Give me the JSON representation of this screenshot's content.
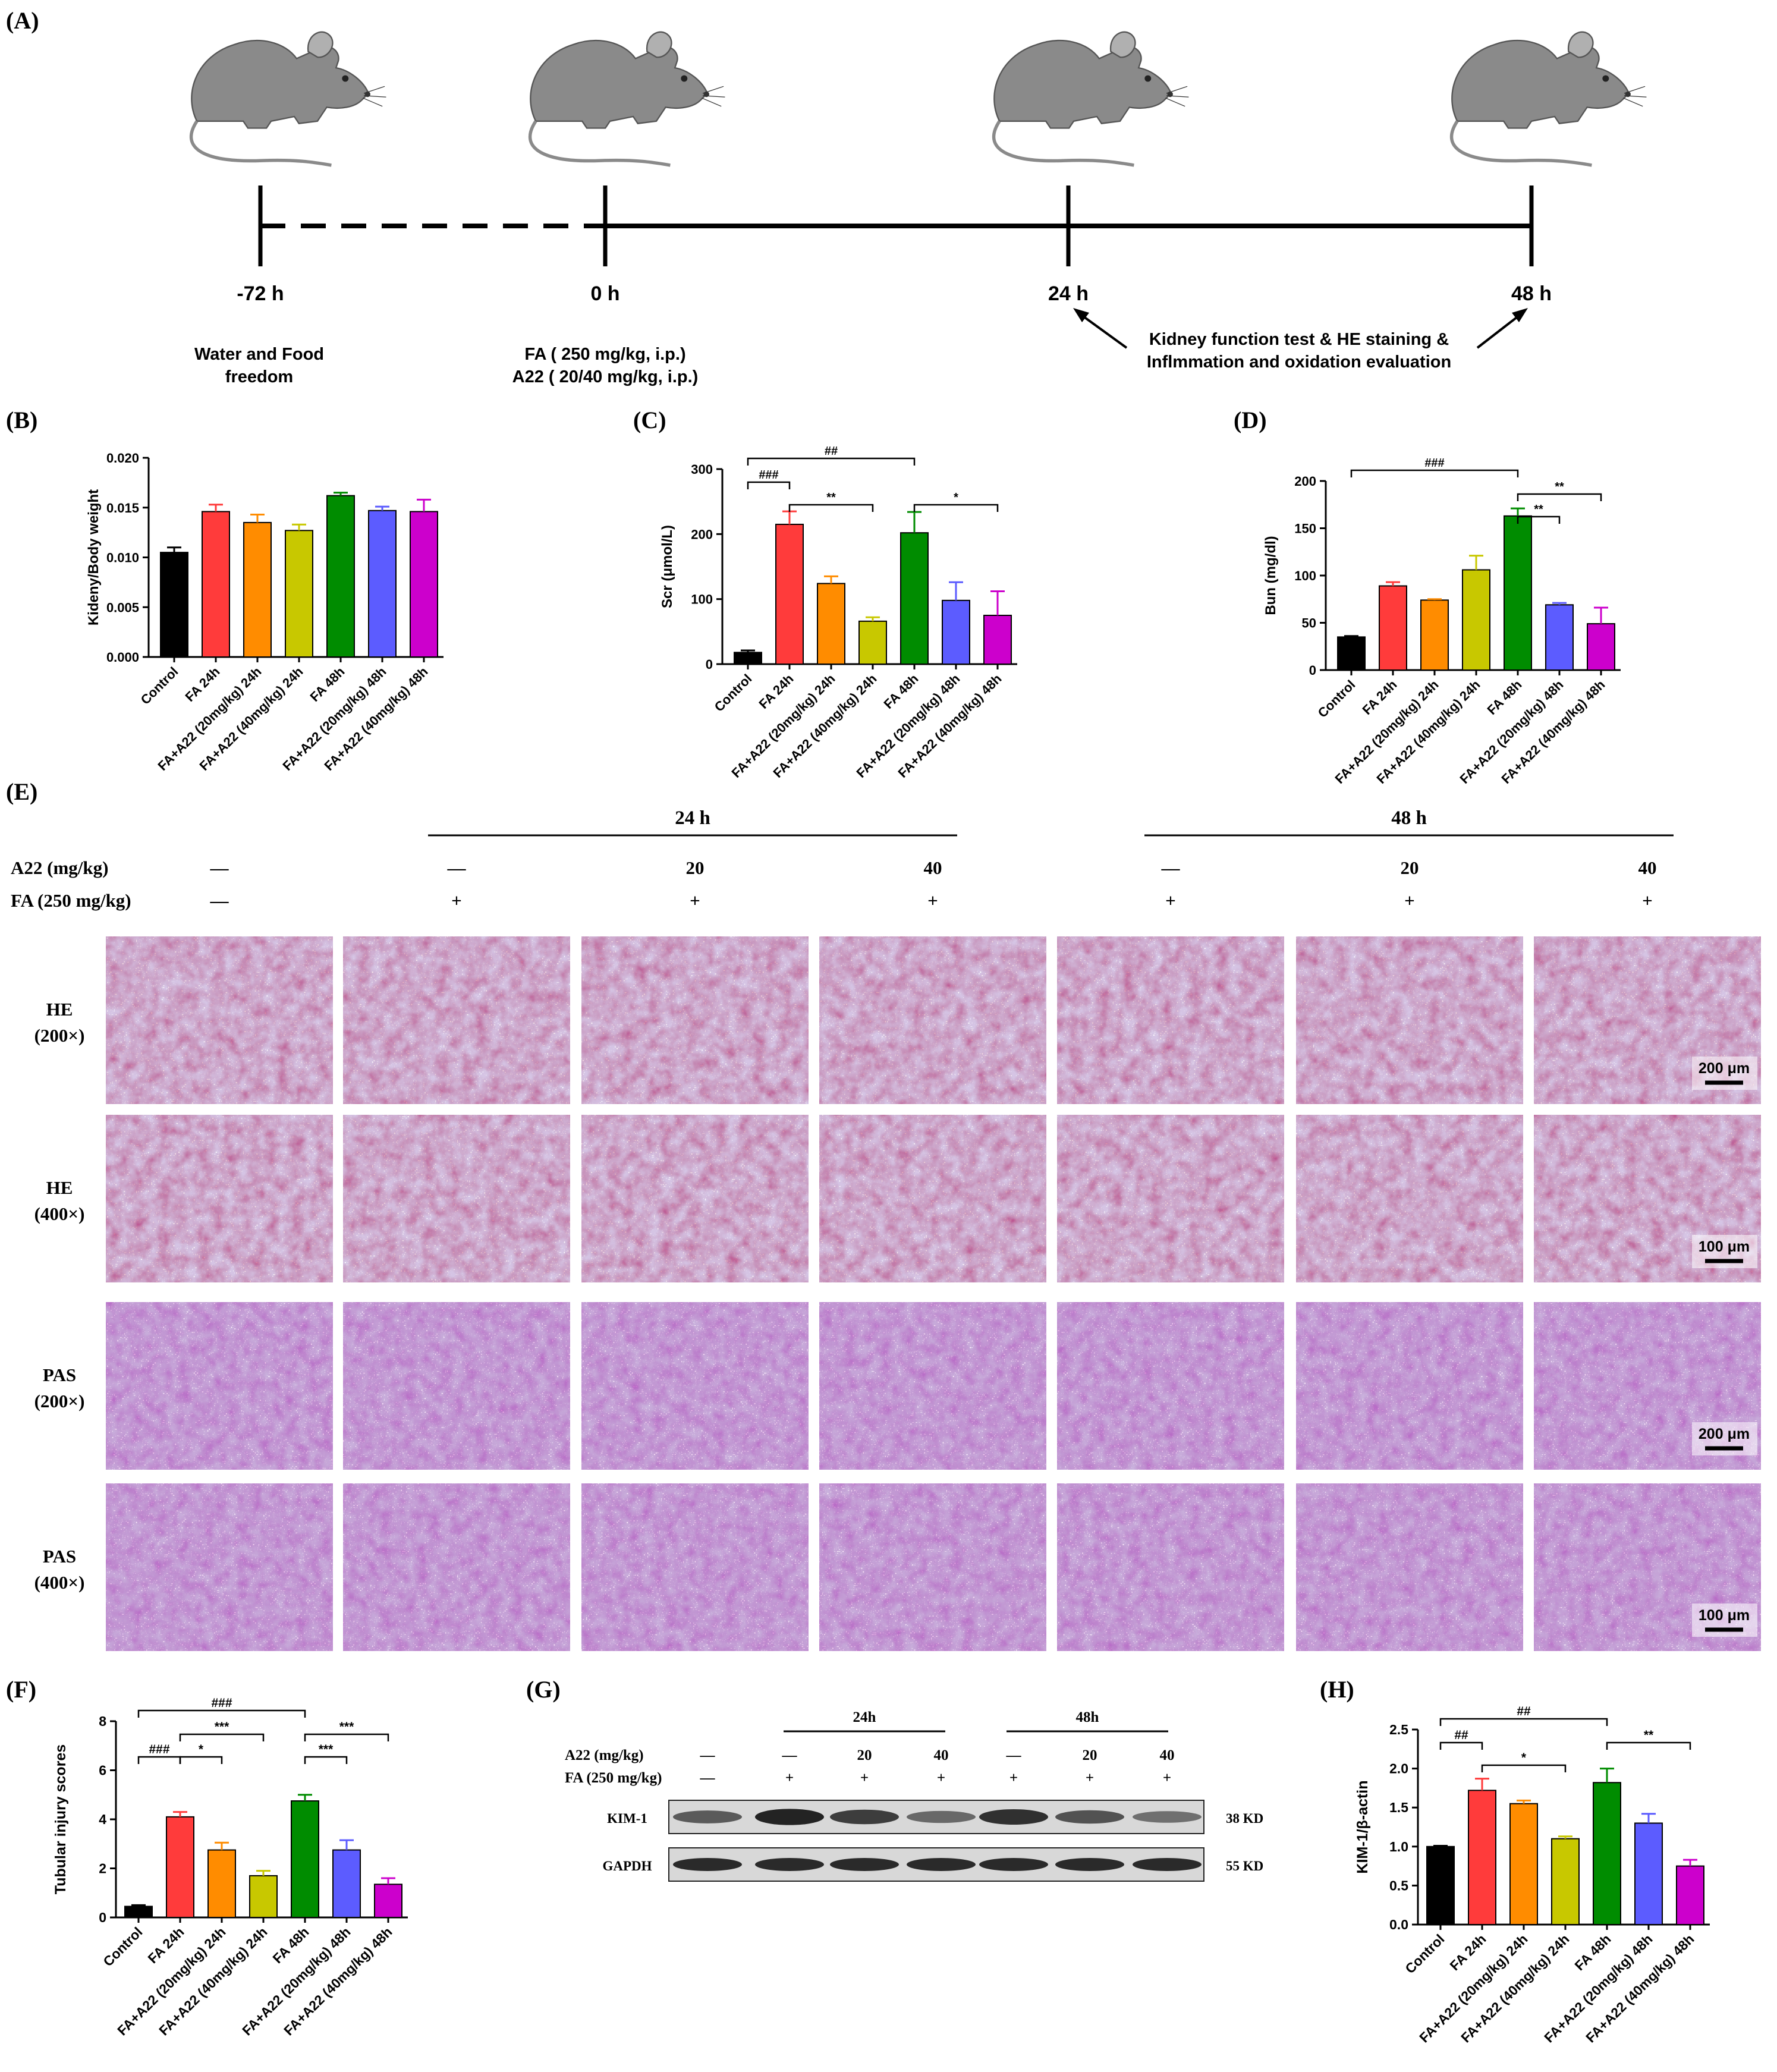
{
  "panel_labels": {
    "A": "(A)",
    "B": "(B)",
    "C": "(C)",
    "D": "(D)",
    "E": "(E)",
    "F": "(F)",
    "G": "(G)",
    "H": "(H)"
  },
  "timeline": {
    "timepoints": [
      "-72 h",
      "0 h",
      "24 h",
      "48 h"
    ],
    "note_water": [
      "Water and Food",
      "freedom"
    ],
    "note_dose": [
      "FA ( 250 mg/kg, i.p.)",
      "A22 ( 20/40 mg/kg, i.p.)"
    ],
    "note_tests": [
      "Kidney function test & HE staining &",
      "Inflmmation and oxidation evaluation"
    ]
  },
  "groups": [
    "Control",
    "FA 24h",
    "FA+A22 (20mg/kg) 24h",
    "FA+A22 (40mg/kg) 24h",
    "FA 48h",
    "FA+A22 (20mg/kg) 48h",
    "FA+A22 (40mg/kg) 48h"
  ],
  "group_colors": [
    "#000000",
    "#ff3b3b",
    "#ff8c00",
    "#c8c800",
    "#008c00",
    "#5c5cff",
    "#cc00cc"
  ],
  "chart_data": [
    {
      "panel": "B",
      "type": "bar",
      "ylabel": "Kideny/Body weight",
      "ylim": [
        0,
        0.02
      ],
      "yticks": [
        "0.000",
        "0.005",
        "0.010",
        "0.015",
        "0.020"
      ],
      "values": [
        0.0105,
        0.0146,
        0.0135,
        0.0127,
        0.0162,
        0.0147,
        0.0146
      ],
      "errors": [
        0.0005,
        0.0007,
        0.0008,
        0.0006,
        0.0003,
        0.0004,
        0.0012
      ],
      "annotations": []
    },
    {
      "panel": "C",
      "type": "bar",
      "ylabel": "Scr (μmol/L)",
      "ylim": [
        0,
        300
      ],
      "yticks": [
        "0",
        "100",
        "200",
        "300"
      ],
      "values": [
        18,
        215,
        124,
        66,
        202,
        98,
        75
      ],
      "errors": [
        3,
        20,
        11,
        6,
        32,
        28,
        37
      ],
      "annotations": [
        {
          "from": 0,
          "to": 4,
          "level": 0,
          "label": "##"
        },
        {
          "from": 0,
          "to": 1,
          "level": 1,
          "label": "###"
        },
        {
          "from": 1,
          "to": 3,
          "level": 2,
          "label": "**"
        },
        {
          "from": 4,
          "to": 6,
          "level": 2,
          "label": "*"
        }
      ]
    },
    {
      "panel": "D",
      "type": "bar",
      "ylabel": "Bun (mg/dl)",
      "ylim": [
        0,
        200
      ],
      "yticks": [
        "0",
        "50",
        "100",
        "150",
        "200"
      ],
      "values": [
        35,
        89,
        74,
        106,
        163,
        69,
        49
      ],
      "errors": [
        1,
        4,
        1,
        15,
        8,
        2,
        17
      ],
      "annotations": [
        {
          "from": 0,
          "to": 4,
          "level": 0,
          "label": "###"
        },
        {
          "from": 4,
          "to": 6,
          "level": 1,
          "label": "**"
        },
        {
          "from": 4,
          "to": 5,
          "level": 2,
          "label": "**"
        }
      ]
    },
    {
      "panel": "F",
      "type": "bar",
      "ylabel": "Tubular injury scores",
      "ylim": [
        0,
        8
      ],
      "yticks": [
        "0",
        "2",
        "4",
        "6",
        "8"
      ],
      "values": [
        0.45,
        4.1,
        2.75,
        1.7,
        4.75,
        2.75,
        1.35
      ],
      "errors": [
        0.05,
        0.2,
        0.3,
        0.2,
        0.25,
        0.4,
        0.25
      ],
      "annotations": [
        {
          "from": 0,
          "to": 4,
          "level": 0,
          "label": "###"
        },
        {
          "from": 1,
          "to": 3,
          "level": 1,
          "label": "***"
        },
        {
          "from": 4,
          "to": 6,
          "level": 1,
          "label": "***"
        },
        {
          "from": 1,
          "to": 2,
          "level": 2,
          "label": "*"
        },
        {
          "from": 4,
          "to": 5,
          "level": 2,
          "label": "***"
        },
        {
          "from": 0,
          "to": 1,
          "level": 2,
          "label": "###"
        }
      ]
    },
    {
      "panel": "H",
      "type": "bar",
      "ylabel": "KIM-1/β-actin",
      "ylim": [
        0,
        2.5
      ],
      "yticks": [
        "0.0",
        "0.5",
        "1.0",
        "1.5",
        "2.0",
        "2.5"
      ],
      "values": [
        1.0,
        1.72,
        1.55,
        1.1,
        1.82,
        1.3,
        0.75
      ],
      "errors": [
        0.01,
        0.15,
        0.04,
        0.03,
        0.18,
        0.12,
        0.08
      ],
      "annotations": [
        {
          "from": 0,
          "to": 4,
          "level": 0,
          "label": "##"
        },
        {
          "from": 0,
          "to": 1,
          "level": 1,
          "label": "##"
        },
        {
          "from": 1,
          "to": 3,
          "level": 2,
          "label": "*"
        },
        {
          "from": 4,
          "to": 6,
          "level": 1,
          "label": "**"
        }
      ]
    }
  ],
  "histology": {
    "group_24h": "24 h",
    "group_48h": "48 h",
    "row_a22_label": "A22 (mg/kg)",
    "row_fa_label": "FA (250 mg/kg)",
    "a22_values": [
      "—",
      "—",
      "20",
      "40",
      "—",
      "20",
      "40"
    ],
    "fa_values": [
      "—",
      "+",
      "+",
      "+",
      "+",
      "+",
      "+"
    ],
    "rows": [
      {
        "stain": "HE",
        "mag": "(200×)",
        "scale": "200 μm",
        "tone": "he"
      },
      {
        "stain": "HE",
        "mag": "(400×)",
        "scale": "100 μm",
        "tone": "he"
      },
      {
        "stain": "PAS",
        "mag": "(200×)",
        "scale": "200 μm",
        "tone": "pas"
      },
      {
        "stain": "PAS",
        "mag": "(400×)",
        "scale": "100 μm",
        "tone": "pas"
      }
    ],
    "tone_colors": {
      "he": "#d8467a",
      "pas": "#e07cd8"
    }
  },
  "blot": {
    "group_24h": "24h",
    "group_48h": "48h",
    "row_a22_label": "A22 (mg/kg)",
    "row_fa_label": "FA (250 mg/kg)",
    "a22_values": [
      "—",
      "—",
      "20",
      "40",
      "—",
      "20",
      "40"
    ],
    "fa_values": [
      "—",
      "+",
      "+",
      "+",
      "+",
      "+",
      "+"
    ],
    "bands": [
      {
        "name": "KIM-1",
        "size": "38 KD",
        "intensity": [
          0.55,
          0.95,
          0.75,
          0.45,
          0.85,
          0.6,
          0.4
        ]
      },
      {
        "name": "GAPDH",
        "size": "55 KD",
        "intensity": [
          0.9,
          0.9,
          0.9,
          0.9,
          0.9,
          0.9,
          0.9
        ]
      }
    ]
  }
}
